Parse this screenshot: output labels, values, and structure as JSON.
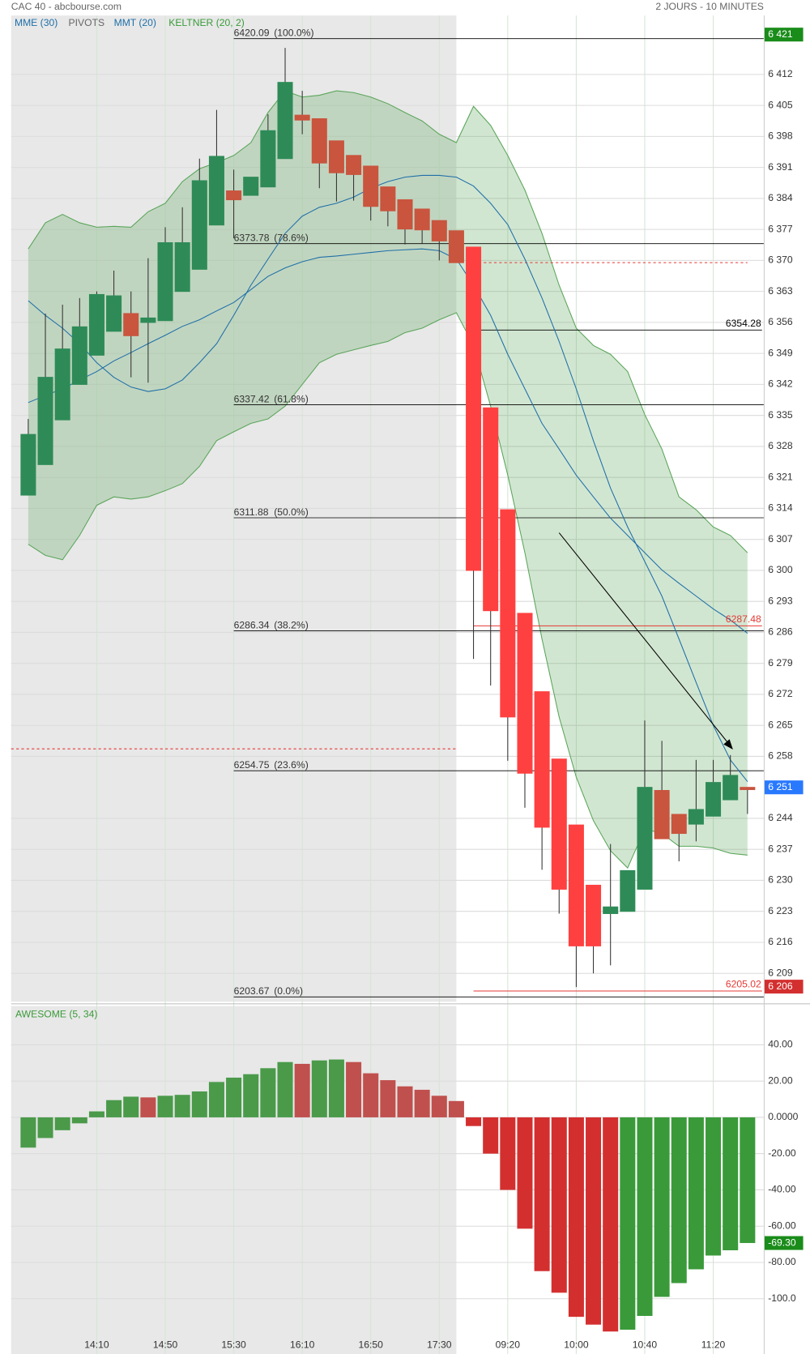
{
  "header": {
    "title": "CAC 40 - abcbourse.com",
    "period": "2 JOURS - 10 MINUTES"
  },
  "chart_data": [
    {
      "type": "candlestick",
      "categories": [
        null,
        null,
        null,
        null,
        "14:10",
        null,
        null,
        null,
        "14:50",
        null,
        null,
        null,
        "15:30",
        null,
        null,
        null,
        "16:10",
        null,
        null,
        null,
        "16:50",
        null,
        null,
        null,
        "17:30",
        null,
        null,
        null,
        "09:20",
        null,
        null,
        null,
        "10:00",
        null,
        null,
        null,
        "10:40",
        null,
        null,
        null,
        "11:20",
        null,
        null
      ],
      "open": [
        6317,
        6323.9,
        6334,
        6342,
        6348.6,
        6354,
        6358,
        6356,
        6356.4,
        6363,
        6368,
        6378,
        6385.7,
        6384.7,
        6386.6,
        6393,
        6402.8,
        6402,
        6397,
        6393.7,
        6391.3,
        6386.6,
        6383.7,
        6381.6,
        6379,
        6376.7,
        6373,
        6336.7,
        6313.7,
        6290.3,
        6272.6,
        6257.4,
        6242.5,
        6228.9,
        6222.5,
        6223,
        6228,
        6250.3,
        6244.9,
        6242.7,
        6244.5,
        6248.2,
        6251
      ],
      "high": [
        6334.2,
        6358,
        6360,
        6361.5,
        6363,
        6367.7,
        6363,
        6370.5,
        6377.5,
        6382,
        6393,
        6404,
        6390.5,
        6388.8,
        6403,
        6418,
        6408.3,
        6402,
        6397,
        6393.7,
        6391.3,
        6386.6,
        6383.7,
        6381.6,
        6379,
        6376.7,
        6373,
        6336.7,
        6313.7,
        6290.3,
        6272.6,
        6257.4,
        6242.5,
        6228.9,
        6238.2,
        6232.2,
        6266.1,
        6261.5,
        6244.9,
        6257.2,
        6257.2,
        6258.3,
        6251
      ],
      "low": [
        6317,
        6323.9,
        6334,
        6342,
        6348.6,
        6354,
        6343.6,
        6342.4,
        6356.4,
        6363,
        6368,
        6378,
        6375,
        6384.7,
        6386.6,
        6393,
        6398.5,
        6386.3,
        6383.3,
        6383.5,
        6379,
        6377.7,
        6373.6,
        6373.8,
        6370,
        6369.5,
        6280,
        6274,
        6257,
        6246.4,
        6232.4,
        6222.5,
        6205.9,
        6209,
        6210.8,
        6223,
        6228,
        6239.4,
        6234.3,
        6238.8,
        6244.5,
        6248.2,
        6245
      ],
      "close": [
        6330.7,
        6343.6,
        6350,
        6355,
        6362.3,
        6362,
        6353,
        6357,
        6374,
        6374,
        6388,
        6393.5,
        6383.7,
        6388.8,
        6399.3,
        6410.2,
        6401.7,
        6392,
        6389.8,
        6389.4,
        6382.2,
        6381.2,
        6377.1,
        6376.9,
        6374.4,
        6369.5,
        6300,
        6290.9,
        6266.9,
        6254.2,
        6242,
        6228,
        6215.2,
        6215.2,
        6224,
        6232.2,
        6251,
        6239.4,
        6240.6,
        6246,
        6252.1,
        6253.7,
        6250.5
      ],
      "colors": [
        "#2e8b57",
        "#2e8b57",
        "#2e8b57",
        "#2e8b57",
        "#2e8b57",
        "#2e8b57",
        "#c9553e",
        "#2e8b57",
        "#2e8b57",
        "#2e8b57",
        "#2e8b57",
        "#2e8b57",
        "#c9553e",
        "#2e8b57",
        "#2e8b57",
        "#2e8b57",
        "#c9553e",
        "#c9553e",
        "#c9553e",
        "#c9553e",
        "#c9553e",
        "#c9553e",
        "#c9553e",
        "#c9553e",
        "#c9553e",
        "#c9553e",
        "#ff4040",
        "#ff4040",
        "#ff4040",
        "#ff4040",
        "#ff4040",
        "#ff4040",
        "#ff4040",
        "#ff4040",
        "#2e8b57",
        "#2e8b57",
        "#2e8b57",
        "#c9553e",
        "#c9553e",
        "#2e8b57",
        "#2e8b57",
        "#2e8b57",
        "#c9553e"
      ],
      "series": [
        {
          "name": "MME (30)",
          "color": "#1f6fa8",
          "values": [
            6337.9,
            6339.5,
            6341,
            6343,
            6344.9,
            6347.3,
            6349.2,
            6351.2,
            6353.1,
            6355.1,
            6356.6,
            6358.6,
            6360.5,
            6363.4,
            6366.4,
            6368.3,
            6369.7,
            6370.7,
            6371,
            6371.4,
            6371.8,
            6372.2,
            6372.4,
            6372.6,
            6372.2,
            6370.3,
            6364.4,
            6357.6,
            6348.8,
            6341,
            6333.2,
            6327.4,
            6321.5,
            6316.6,
            6311.8,
            6307.9,
            6304,
            6300.1,
            6297.1,
            6294.2,
            6291.3,
            6288.8,
            6285.8
          ]
        },
        {
          "name": "MMT (20)",
          "color": "#1f6fa8",
          "values": [
            6360.9,
            6357.6,
            6354.7,
            6351.2,
            6346.9,
            6343.6,
            6341.4,
            6340.4,
            6341,
            6343,
            6346.9,
            6351.2,
            6357.6,
            6364.4,
            6370.3,
            6376.1,
            6380,
            6382,
            6382.9,
            6384.3,
            6386.3,
            6387.8,
            6388.8,
            6389.2,
            6389.2,
            6388.8,
            6386.8,
            6382.9,
            6378.1,
            6370.3,
            6361.5,
            6351.7,
            6341,
            6329.3,
            6318.6,
            6309.8,
            6302,
            6294.2,
            6284.5,
            6274.7,
            6265,
            6257.2,
            6252.3
          ]
        }
      ],
      "pivots": {
        "name": "PIVOTS",
        "color": "#e53935",
        "values": [
          6259.7,
          6369.5
        ]
      },
      "keltner": {
        "name": "KELTNER (20, 2)",
        "color": "#5aa55a",
        "upper": [
          6372.6,
          6378.5,
          6380.4,
          6378.5,
          6377.5,
          6377.7,
          6377.5,
          6381,
          6382.9,
          6387.8,
          6390.7,
          6392.1,
          6393.7,
          6396.6,
          6403.4,
          6408.3,
          6406.9,
          6407.3,
          6408.3,
          6407.9,
          6406.9,
          6405.4,
          6403.4,
          6401.5,
          6398.5,
          6396.6,
          6404.8,
          6400.5,
          6393.7,
          6385.9,
          6376.1,
          6364.4,
          6354.7,
          6350.8,
          6348.8,
          6344.9,
          6335.2,
          6327.4,
          6316.6,
          6313.7,
          6309.8,
          6307.9,
          6304
        ],
        "lower": [
          6305.9,
          6303.4,
          6302.4,
          6307.9,
          6314.7,
          6316.6,
          6316.1,
          6316.6,
          6318,
          6319.6,
          6323.5,
          6329.3,
          6331.3,
          6333.2,
          6334.2,
          6337.1,
          6342,
          6346.9,
          6348.8,
          6349.8,
          6350.8,
          6351.7,
          6353.7,
          6354.7,
          6356.6,
          6358.2,
          6350.8,
          6337.1,
          6321.5,
          6304,
          6284.5,
          6266.9,
          6253.3,
          6243.5,
          6236.7,
          6232.8,
          6241.6,
          6240.6,
          6237.7,
          6237.7,
          6237.3,
          6236.1,
          6235.7
        ]
      },
      "fibonacci": [
        {
          "price": 6420.09,
          "percent": "(100.0%)"
        },
        {
          "price": 6373.78,
          "percent": "(78.6%)"
        },
        {
          "price": 6337.42,
          "percent": "(61.8%)"
        },
        {
          "price": 6311.88,
          "percent": "(50.0%)"
        },
        {
          "price": 6286.34,
          "percent": "(38.2%)"
        },
        {
          "price": 6254.75,
          "percent": "(23.6%)"
        },
        {
          "price": 6203.67,
          "percent": "(0.0%)"
        }
      ],
      "price_lines": [
        {
          "value": 6354.28,
          "color": "#000000"
        },
        {
          "value": 6287.48,
          "color": "#e53935"
        },
        {
          "value": 6205.02,
          "color": "#e53935"
        }
      ],
      "badges": [
        {
          "value": 6421,
          "label": "6 421",
          "color": "#1a8c1a"
        },
        {
          "value": 6251,
          "label": "6 251",
          "color": "#2979ff"
        },
        {
          "value": 6206,
          "label": "6 206",
          "color": "#d32f2f"
        }
      ],
      "ylim": [
        6202.6,
        6425.3
      ],
      "yticks": [
        {
          "value": 6412,
          "label": "6 412"
        },
        {
          "value": 6405,
          "label": "6 405"
        },
        {
          "value": 6398,
          "label": "6 398"
        },
        {
          "value": 6391,
          "label": "6 391"
        },
        {
          "value": 6384,
          "label": "6 384"
        },
        {
          "value": 6377,
          "label": "6 377"
        },
        {
          "value": 6370,
          "label": "6 370"
        },
        {
          "value": 6363,
          "label": "6 363"
        },
        {
          "value": 6356,
          "label": "6 356"
        },
        {
          "value": 6349,
          "label": "6 349"
        },
        {
          "value": 6342,
          "label": "6 342"
        },
        {
          "value": 6335,
          "label": "6 335"
        },
        {
          "value": 6328,
          "label": "6 328"
        },
        {
          "value": 6321,
          "label": "6 321"
        },
        {
          "value": 6314,
          "label": "6 314"
        },
        {
          "value": 6307,
          "label": "6 307"
        },
        {
          "value": 6300,
          "label": "6 300"
        },
        {
          "value": 6293,
          "label": "6 293"
        },
        {
          "value": 6286,
          "label": "6 286"
        },
        {
          "value": 6279,
          "label": "6 279"
        },
        {
          "value": 6272,
          "label": "6 272"
        },
        {
          "value": 6265,
          "label": "6 265"
        },
        {
          "value": 6258,
          "label": "6 258"
        },
        {
          "value": 6244,
          "label": "6 244"
        },
        {
          "value": 6237,
          "label": "6 237"
        },
        {
          "value": 6230,
          "label": "6 230"
        },
        {
          "value": 6223,
          "label": "6 223"
        },
        {
          "value": 6216,
          "label": "6 216"
        },
        {
          "value": 6209,
          "label": "6 209"
        }
      ],
      "grid": true
    },
    {
      "type": "bar",
      "title": "AWESOME (5, 34)",
      "values": [
        -16.7,
        -11.4,
        -7.1,
        -3.3,
        3.3,
        9.5,
        11.4,
        11,
        11.9,
        12.4,
        14.3,
        19.5,
        21.9,
        23.8,
        27.1,
        30.5,
        29.5,
        31.4,
        31.9,
        30.5,
        24.3,
        20.5,
        17.1,
        15.2,
        11.9,
        9,
        -4.8,
        -20,
        -40,
        -61.4,
        -84.8,
        -96.7,
        -110,
        -114.3,
        -118.1,
        -117.1,
        -109.5,
        -99,
        -91.4,
        -83.8,
        -76.2,
        -73.3,
        -69.3
      ],
      "colors": [
        "#4a9a4a",
        "#4a9a4a",
        "#4a9a4a",
        "#4a9a4a",
        "#4a9a4a",
        "#4a9a4a",
        "#4a9a4a",
        "#c0504d",
        "#4a9a4a",
        "#4a9a4a",
        "#4a9a4a",
        "#4a9a4a",
        "#4a9a4a",
        "#4a9a4a",
        "#4a9a4a",
        "#4a9a4a",
        "#c0504d",
        "#4a9a4a",
        "#4a9a4a",
        "#c0504d",
        "#c0504d",
        "#c0504d",
        "#c0504d",
        "#c0504d",
        "#c0504d",
        "#c0504d",
        "#d32f2f",
        "#d32f2f",
        "#d32f2f",
        "#d32f2f",
        "#d32f2f",
        "#d32f2f",
        "#d32f2f",
        "#d32f2f",
        "#d32f2f",
        "#3a9a3a",
        "#3a9a3a",
        "#3a9a3a",
        "#3a9a3a",
        "#3a9a3a",
        "#3a9a3a",
        "#3a9a3a",
        "#3a9a3a"
      ],
      "badge": {
        "value": -69.3,
        "label": "-69.30",
        "color": "#1a8c1a"
      },
      "ylim": [
        -130.5,
        61.4
      ],
      "yticks": [
        {
          "value": 40,
          "label": "40.00"
        },
        {
          "value": 20,
          "label": "20.00"
        },
        {
          "value": 0,
          "label": "0.0000"
        },
        {
          "value": -20,
          "label": "-20.00"
        },
        {
          "value": -40,
          "label": "-40.00"
        },
        {
          "value": -60,
          "label": "-60.00"
        },
        {
          "value": -80,
          "label": "-80.00"
        },
        {
          "value": -100,
          "label": "-100.0"
        }
      ],
      "grid": true
    }
  ]
}
